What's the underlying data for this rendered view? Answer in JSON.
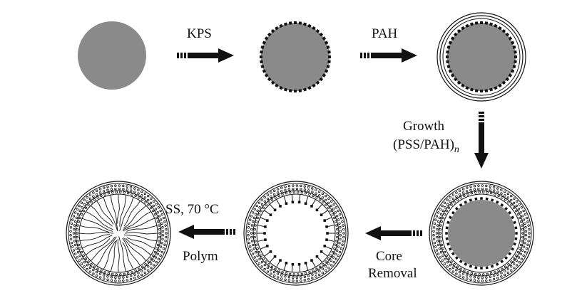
{
  "steps": {
    "kps": "KPS",
    "pah": "PAH",
    "growth": "Growth",
    "growth_formula": "(PSS/PAH)",
    "growth_subscript": "n",
    "core": "Core",
    "removal": "Removal",
    "ss_temp": "SS, 70 °C",
    "polym": "Polym"
  },
  "colors": {
    "core": "#8a8a8a",
    "ink": "#111111",
    "background": "#ffffff"
  }
}
